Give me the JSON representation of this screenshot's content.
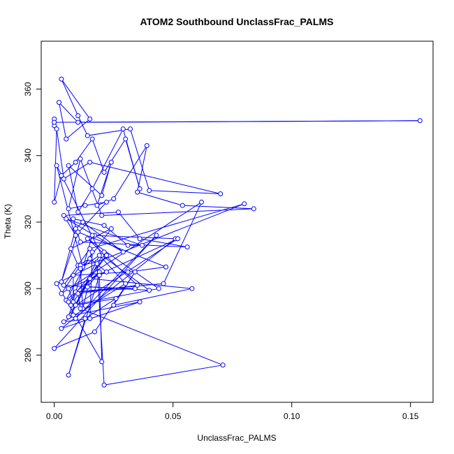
{
  "chart_data": {
    "type": "scatter",
    "title": "ATOM2 Southbound UnclassFrac_PALMS",
    "xlabel": "UnclassFrac_PALMS",
    "ylabel": "Theta (K)",
    "xlim": [
      -0.0055,
      0.1595
    ],
    "ylim": [
      265.8,
      374.4
    ],
    "xticks": [
      0.0,
      0.05,
      0.1,
      0.15
    ],
    "xtick_labels": [
      "0.00",
      "0.05",
      "0.10",
      "0.15"
    ],
    "yticks": [
      280,
      300,
      320,
      340,
      360
    ],
    "ytick_labels": [
      "280",
      "300",
      "320",
      "340",
      "360"
    ],
    "grid": false,
    "legend": "none",
    "line_style": "points connected by lines (type=b)",
    "color": "#0000ff",
    "series": [
      {
        "x": [
          0.0,
          0.0,
          0.0,
          0.154,
          0.01,
          0.002,
          0.005,
          0.015,
          0.003,
          0.01,
          0.014,
          0.032,
          0.04,
          0.07,
          0.015,
          0.004,
          0.001,
          0.0,
          0.003,
          0.009,
          0.016,
          0.021,
          0.03,
          0.036,
          0.029,
          0.016,
          0.01,
          0.006,
          0.02,
          0.024,
          0.018,
          0.025,
          0.039,
          0.035,
          0.054,
          0.084,
          0.02,
          0.011,
          0.006,
          0.013,
          0.022,
          0.009,
          0.004,
          0.027,
          0.036,
          0.056,
          0.011,
          0.008,
          0.021,
          0.031,
          0.037,
          0.005,
          0.017,
          0.029,
          0.012,
          0.009,
          0.003,
          0.01,
          0.047,
          0.031,
          0.008,
          0.008,
          0.006,
          0.022,
          0.015,
          0.01,
          0.007,
          0.024,
          0.012,
          0.001,
          0.02,
          0.04,
          0.004,
          0.015,
          0.08,
          0.018,
          0.011,
          0.003,
          0.062,
          0.046,
          0.009,
          0.034,
          0.014,
          0.019,
          0.005,
          0.016,
          0.015,
          0.004,
          0.03,
          0.019,
          0.007,
          0.015,
          0.012,
          0.011,
          0.021,
          0.006,
          0.016,
          0.051,
          0.003,
          0.036,
          0.008,
          0.009,
          0.043,
          0.0,
          0.017,
          0.034,
          0.025,
          0.058,
          0.015,
          0.052,
          0.009,
          0.026,
          0.013,
          0.006,
          0.019,
          0.02,
          0.001,
          0.018,
          0.021,
          0.071,
          0.011,
          0.01,
          0.035,
          0.014,
          0.044,
          0.007,
          0.022,
          0.006
        ],
        "y": [
          351,
          349,
          350,
          350.5,
          350,
          356,
          345,
          351,
          363,
          352,
          346,
          348,
          329.5,
          328.5,
          338,
          333,
          348,
          326,
          334,
          338,
          345,
          335,
          345,
          330,
          348,
          330,
          323,
          337,
          328,
          338,
          325,
          327,
          343,
          329,
          325,
          324,
          322,
          339,
          324,
          325,
          326,
          316,
          322,
          323,
          315,
          312.5,
          314,
          321,
          319,
          313,
          313,
          321,
          316,
          311,
          320,
          318,
          302,
          317,
          306.5,
          305,
          304,
          296,
          300,
          305,
          309,
          307,
          312,
          318,
          306.5,
          337,
          310,
          299.5,
          301,
          312,
          325.5,
          308,
          307,
          298.5,
          326,
          301.5,
          299,
          300,
          300.5,
          305,
          296.5,
          311,
          291,
          290,
          301.5,
          310,
          292,
          303,
          294,
          306,
          311,
          291.5,
          316,
          315,
          288,
          296,
          292,
          291,
          316,
          282,
          287,
          305,
          295,
          300,
          303,
          315,
          295,
          297,
          291,
          274,
          304,
          278,
          301.5,
          307.5,
          271,
          277,
          294,
          298.5,
          301,
          315,
          300,
          295,
          310,
          296
        ]
      }
    ]
  }
}
